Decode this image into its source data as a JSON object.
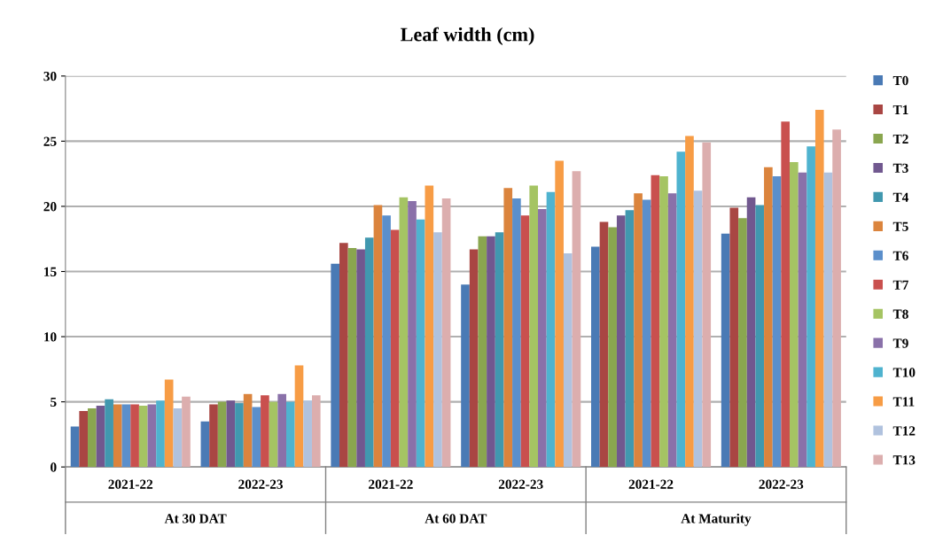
{
  "chart_data": {
    "type": "bar",
    "title": "Leaf width (cm)",
    "categories": [
      "2021-22",
      "2022-23",
      "2021-22",
      "2022-23",
      "2021-22",
      "2022-23"
    ],
    "annotations": [
      "At 30 DAT",
      "At 60 DAT",
      "At Maturity"
    ],
    "ylim": [
      0,
      30
    ],
    "yticks": [
      0,
      5,
      10,
      15,
      20,
      25,
      30
    ],
    "grid": "y",
    "legend": "right",
    "series": [
      {
        "name": "T0",
        "color": "#4a7ab5",
        "values": [
          3.1,
          3.5,
          15.6,
          14.0,
          16.9,
          17.9
        ]
      },
      {
        "name": "T1",
        "color": "#a94643",
        "values": [
          4.3,
          4.8,
          17.2,
          16.7,
          18.8,
          19.9
        ]
      },
      {
        "name": "T2",
        "color": "#8aa64f",
        "values": [
          4.5,
          5.0,
          16.8,
          17.7,
          18.4,
          19.1
        ]
      },
      {
        "name": "T3",
        "color": "#71588f",
        "values": [
          4.7,
          5.1,
          16.7,
          17.7,
          19.3,
          20.7
        ]
      },
      {
        "name": "T4",
        "color": "#4198af",
        "values": [
          5.2,
          4.9,
          17.6,
          18.0,
          19.7,
          20.1
        ]
      },
      {
        "name": "T5",
        "color": "#db843d",
        "values": [
          4.8,
          5.6,
          20.1,
          21.4,
          21.0,
          23.0
        ]
      },
      {
        "name": "T6",
        "color": "#5b8fcb",
        "values": [
          4.8,
          4.6,
          19.3,
          20.6,
          20.5,
          22.3
        ]
      },
      {
        "name": "T7",
        "color": "#c9504e",
        "values": [
          4.8,
          5.5,
          18.2,
          19.3,
          22.4,
          26.5
        ]
      },
      {
        "name": "T8",
        "color": "#a5c463",
        "values": [
          4.7,
          5.0,
          20.7,
          21.6,
          22.3,
          23.4
        ]
      },
      {
        "name": "T9",
        "color": "#8a71a9",
        "values": [
          4.8,
          5.6,
          20.4,
          19.8,
          21.0,
          22.6
        ]
      },
      {
        "name": "T10",
        "color": "#4fb3cf",
        "values": [
          5.1,
          5.0,
          19.0,
          21.1,
          24.2,
          24.6
        ]
      },
      {
        "name": "T11",
        "color": "#f79c45",
        "values": [
          6.7,
          7.8,
          21.6,
          23.5,
          25.4,
          27.4
        ]
      },
      {
        "name": "T12",
        "color": "#b0c2de",
        "values": [
          4.5,
          5.1,
          18.0,
          16.4,
          21.2,
          22.6
        ]
      },
      {
        "name": "T13",
        "color": "#dcaeae",
        "values": [
          5.4,
          5.5,
          20.6,
          22.7,
          24.9,
          25.9
        ]
      }
    ]
  }
}
